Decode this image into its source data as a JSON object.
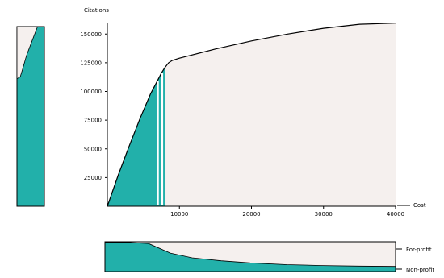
{
  "chart_data": {
    "type": "area",
    "xlabel": "Cost",
    "ylabel": "Citations",
    "xlim": [
      0,
      40000
    ],
    "ylim": [
      0,
      160000
    ],
    "x_ticks": [
      10000,
      20000,
      30000,
      40000
    ],
    "y_ticks": [
      25000,
      50000,
      75000,
      100000,
      125000,
      150000
    ],
    "colors": {
      "fill": "#22b0aa",
      "background": "#f5f0ee",
      "line": "#000000",
      "marker": "#ffffff"
    },
    "curve": {
      "x": [
        0,
        1500,
        3000,
        4500,
        6000,
        7000,
        7500,
        8000,
        8500,
        9000,
        10000,
        15000,
        20000,
        25000,
        30000,
        35000,
        40000
      ],
      "y": [
        0,
        27000,
        52000,
        76000,
        98000,
        110000,
        116000,
        121000,
        125000,
        127000,
        129000,
        137000,
        144000,
        150000,
        155000,
        158500,
        159500
      ]
    },
    "filled_until_x": 8000,
    "marker_lines_x": [
      7000,
      7600
    ],
    "side_panel": {
      "profile": [
        {
          "fraction_from_top": 0.0,
          "fill_fraction": 0.75
        },
        {
          "fraction_from_top": 0.08,
          "fill_fraction": 0.55
        },
        {
          "fraction_from_top": 0.16,
          "fill_fraction": 0.35
        },
        {
          "fraction_from_top": 0.24,
          "fill_fraction": 0.2
        },
        {
          "fraction_from_top": 0.28,
          "fill_fraction": 0.12
        },
        {
          "fraction_from_top": 0.29,
          "fill_fraction": 0.0
        },
        {
          "fraction_from_top": 1.0,
          "fill_fraction": 0.0
        }
      ]
    },
    "bottom_panel": {
      "series": [
        {
          "name": "For-profit",
          "position": "top"
        },
        {
          "name": "Non-profit",
          "position": "bottom"
        }
      ],
      "x": [
        0,
        3000,
        6000,
        9000,
        12000,
        16000,
        20000,
        25000,
        30000,
        35000,
        40000
      ],
      "non_profit_fraction": [
        0.98,
        0.98,
        0.94,
        0.62,
        0.46,
        0.36,
        0.29,
        0.23,
        0.2,
        0.18,
        0.17
      ]
    }
  }
}
